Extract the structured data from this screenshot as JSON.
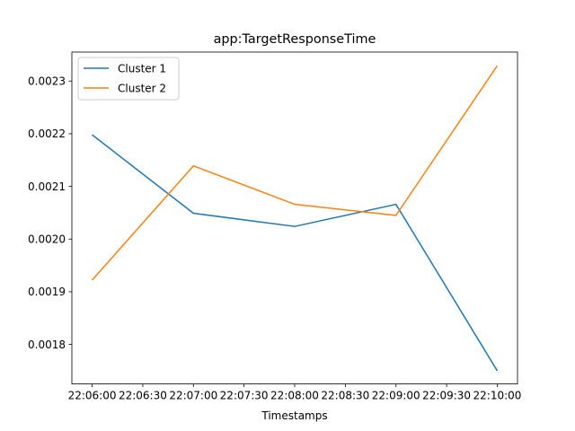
{
  "chart_data": {
    "type": "line",
    "title": "app:TargetResponseTime",
    "xlabel": "Timestamps",
    "ylabel": "",
    "x": [
      "22:06:00",
      "22:07:00",
      "22:08:00",
      "22:09:00",
      "22:10:00"
    ],
    "xticks": [
      "22:06:00",
      "22:06:30",
      "22:07:00",
      "22:07:30",
      "22:08:00",
      "22:08:30",
      "22:09:00",
      "22:09:30",
      "22:10:00"
    ],
    "yticks": [
      "0.0018",
      "0.0019",
      "0.0020",
      "0.0021",
      "0.0022",
      "0.0023"
    ],
    "ylim": [
      0.001725,
      0.002355
    ],
    "grid": false,
    "legend_position": "top-left",
    "series": [
      {
        "name": "Cluster 1",
        "color": "#1f77b4",
        "values": [
          0.002198,
          0.002049,
          0.002024,
          0.002066,
          0.00175
        ]
      },
      {
        "name": "Cluster 2",
        "color": "#ff7f0e",
        "values": [
          0.001922,
          0.002139,
          0.002066,
          0.002045,
          0.002329
        ]
      }
    ]
  }
}
